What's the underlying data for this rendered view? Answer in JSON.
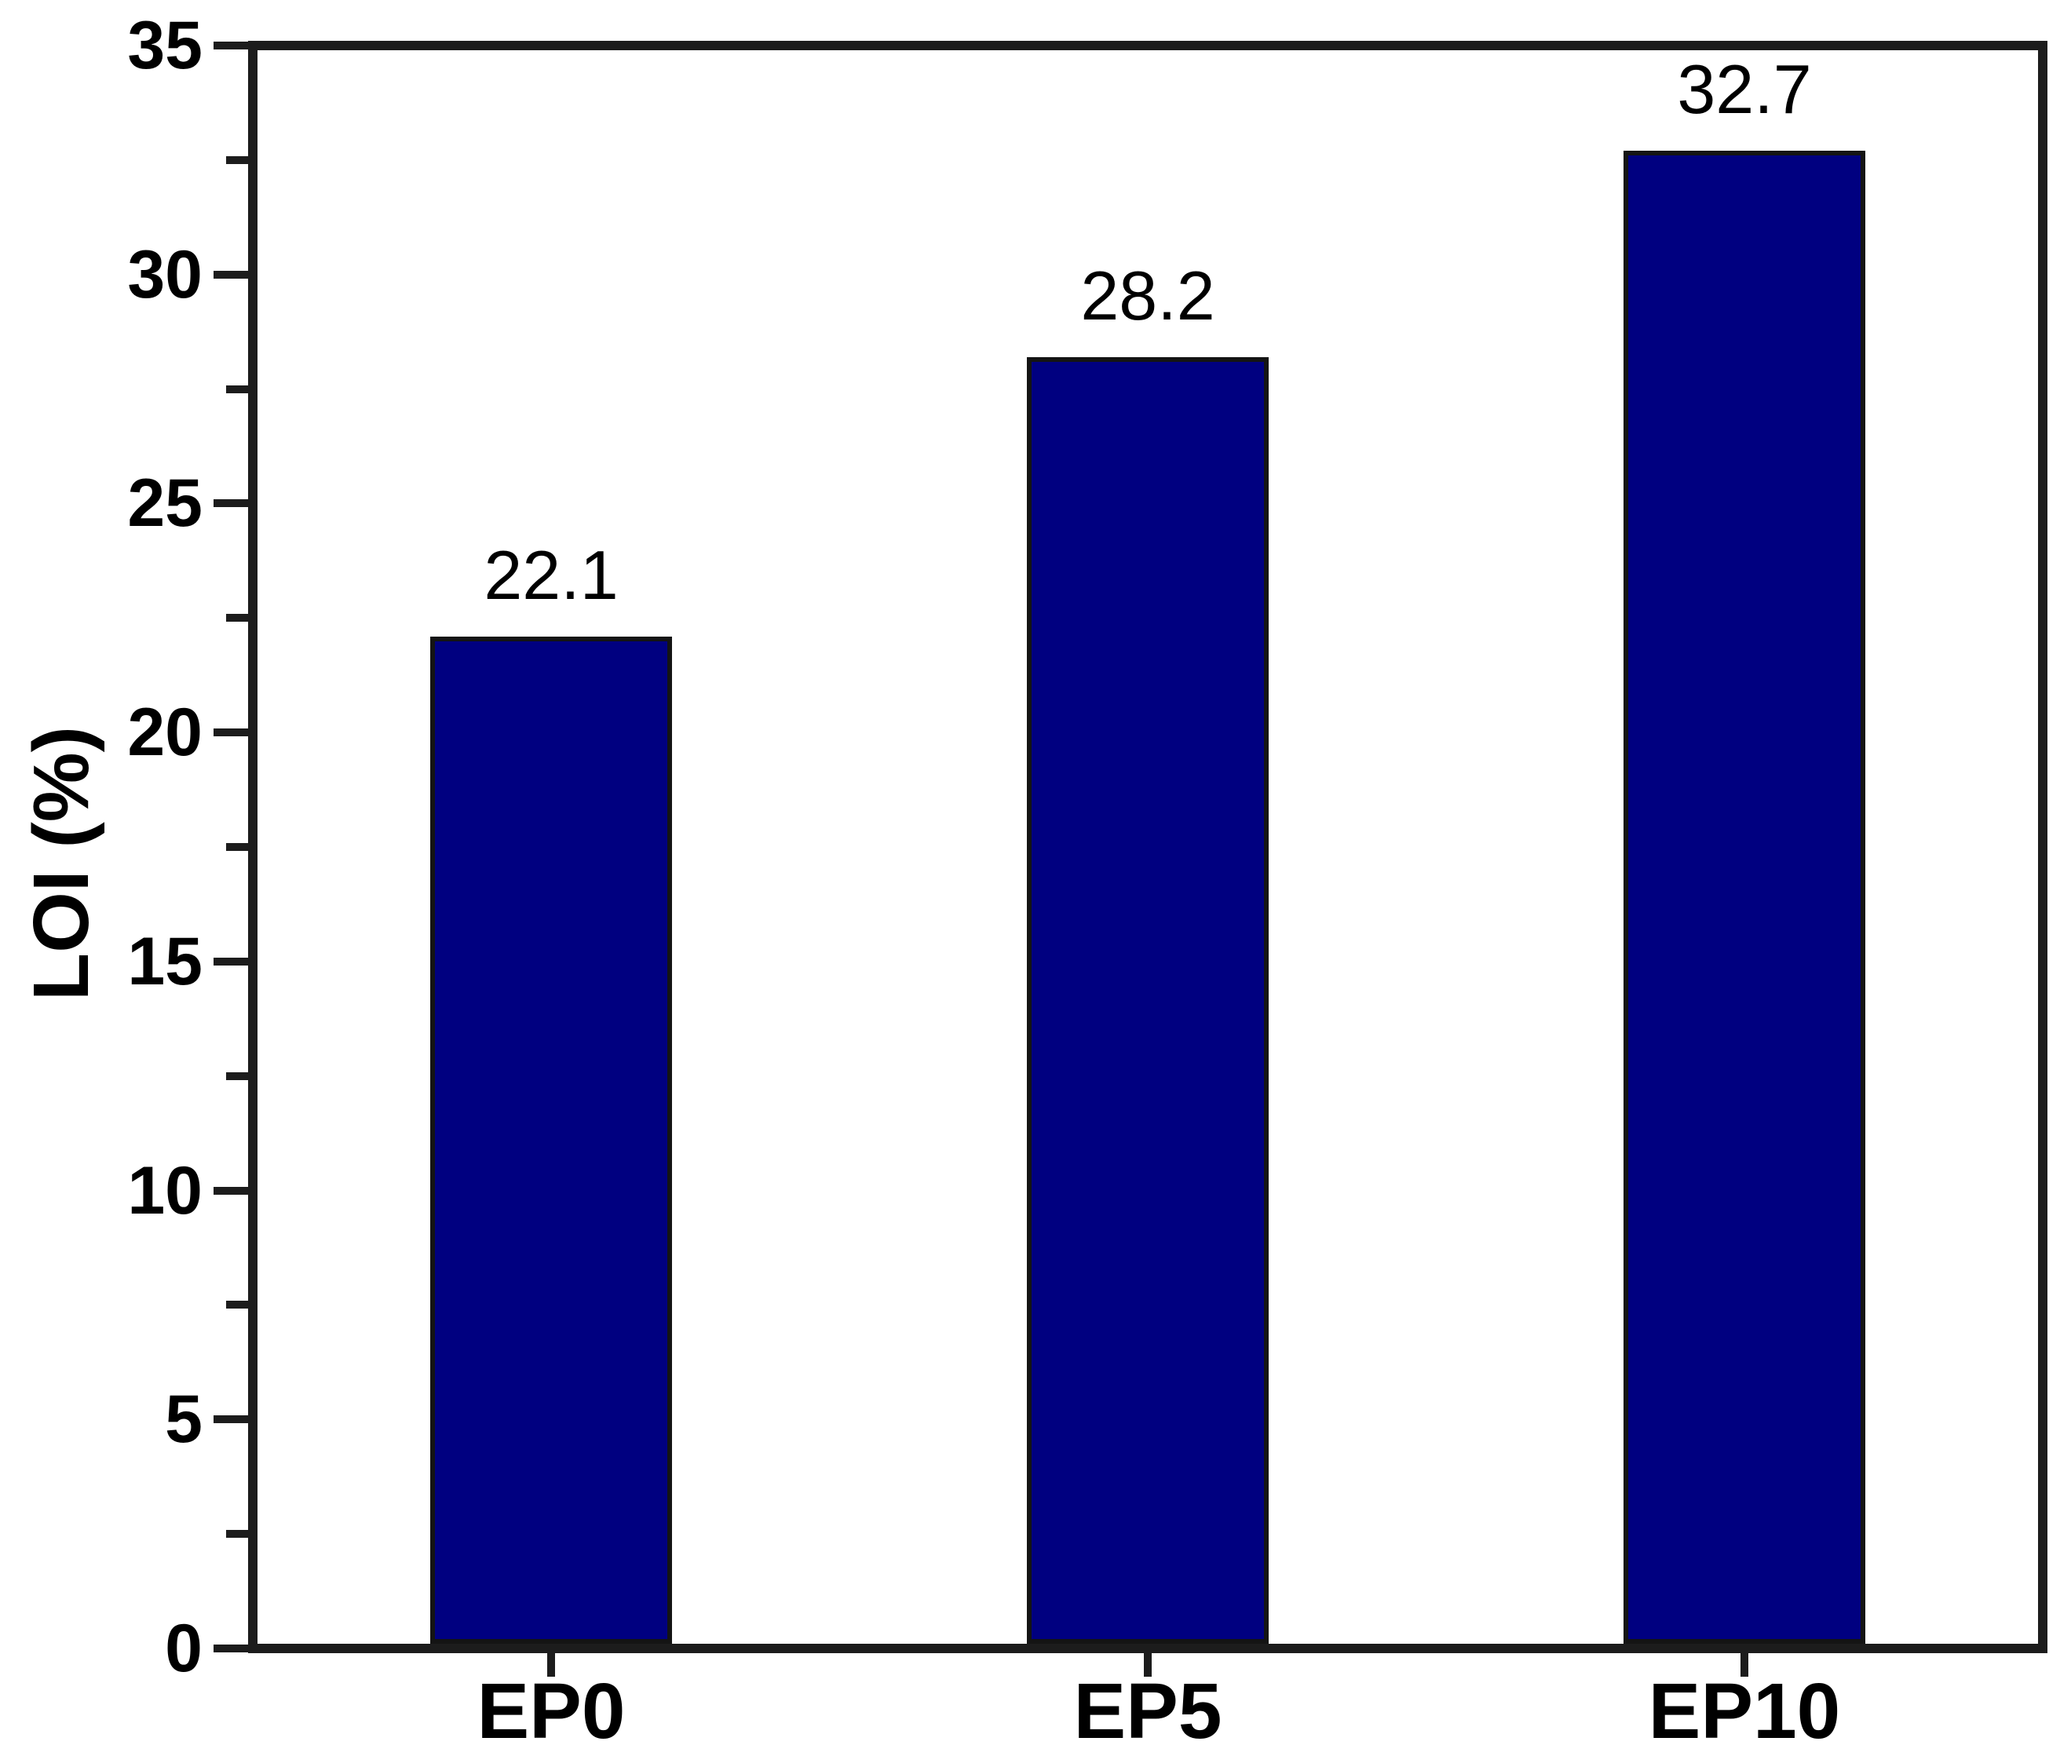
{
  "figure": {
    "background_color": "#ffffff"
  },
  "chart_data": {
    "type": "bar",
    "title": "",
    "xlabel": "",
    "ylabel": "LOI (%)",
    "categories": [
      "EP0",
      "EP5",
      "EP10"
    ],
    "values": [
      22.1,
      28.2,
      32.7
    ],
    "bar_labels": [
      "22.1",
      "28.2",
      "32.7"
    ],
    "ylim": [
      0,
      35
    ],
    "ytick_major_interval": 5,
    "ytick_minor_interval": 2.5,
    "ytick_labels": [
      "0",
      "5",
      "10",
      "15",
      "20",
      "25",
      "30",
      "35"
    ],
    "grid": "off",
    "legend": "none",
    "bar_color": "#000080",
    "bar_edge_color": "#141414",
    "axis_color": "#1c1c1c",
    "text_color": "#000000"
  }
}
